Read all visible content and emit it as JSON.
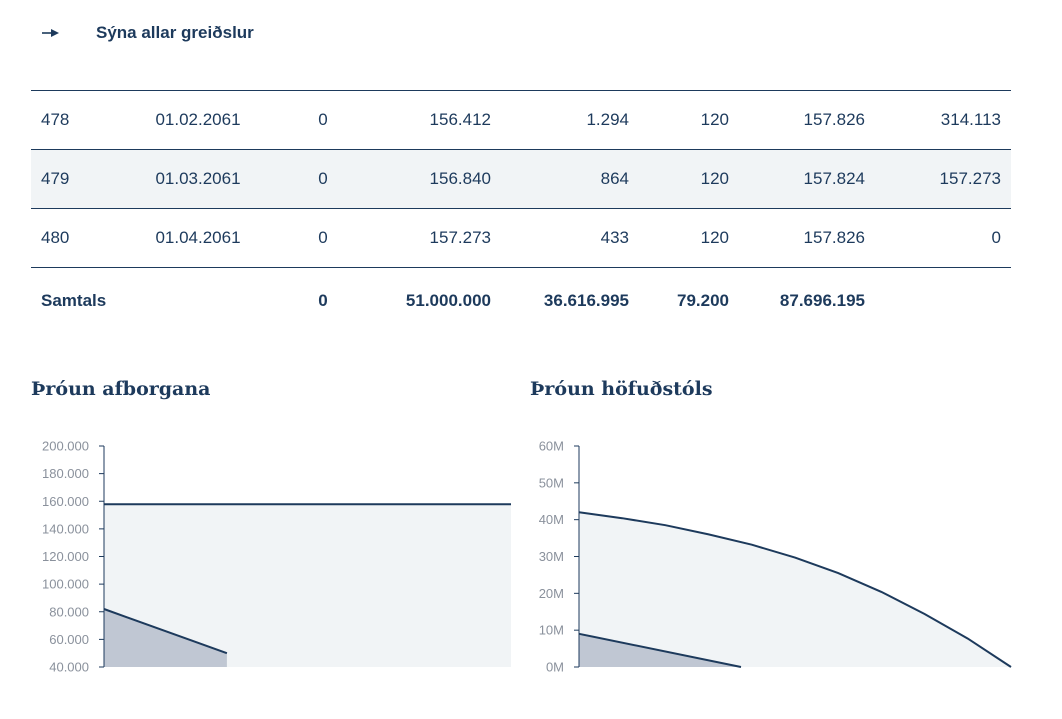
{
  "show_all": {
    "label": "Sýna allar greiðslur",
    "icon": "arrow-right-icon"
  },
  "table": {
    "rows": [
      {
        "nr": "478",
        "date": "01.02.2061",
        "c3": "0",
        "c4": "156.412",
        "c5": "1.294",
        "c6": "120",
        "c7": "157.826",
        "c8": "314.113"
      },
      {
        "nr": "479",
        "date": "01.03.2061",
        "c3": "0",
        "c4": "156.840",
        "c5": "864",
        "c6": "120",
        "c7": "157.824",
        "c8": "157.273"
      },
      {
        "nr": "480",
        "date": "01.04.2061",
        "c3": "0",
        "c4": "157.273",
        "c5": "433",
        "c6": "120",
        "c7": "157.826",
        "c8": "0"
      }
    ],
    "total": {
      "label": "Samtals",
      "c3": "0",
      "c4": "51.000.000",
      "c5": "36.616.995",
      "c6": "79.200",
      "c7": "87.696.195",
      "c8": ""
    }
  },
  "colors": {
    "primary": "#1d3a5c",
    "area_light": "#f1f4f6",
    "area_dark": "#c0c7d3",
    "axis_text": "#8a919c"
  },
  "chart_data": [
    {
      "type": "area",
      "title": "Þróun afborgana",
      "yticks": [
        "200.000",
        "180.000",
        "160.000",
        "140.000",
        "120.000",
        "100.000",
        "80.000",
        "60.000",
        "40.000"
      ],
      "ylim": [
        40000,
        200000
      ],
      "xlim": [
        0,
        480
      ],
      "series": [
        {
          "name": "total_payment",
          "x": [
            0,
            480
          ],
          "values": [
            157826,
            157826
          ]
        },
        {
          "name": "interest",
          "x": [
            0,
            145
          ],
          "values": [
            82000,
            50000
          ]
        }
      ]
    },
    {
      "type": "area",
      "title": "Þróun höfuðstóls",
      "yticks": [
        "60M",
        "50M",
        "40M",
        "30M",
        "20M",
        "10M",
        "0M"
      ],
      "ylim": [
        0,
        60
      ],
      "xlim": [
        0,
        480
      ],
      "series": [
        {
          "name": "principal_balance",
          "x": [
            0,
            48,
            96,
            144,
            192,
            240,
            288,
            336,
            384,
            432,
            480
          ],
          "values": [
            42,
            40.4,
            38.5,
            36,
            33.2,
            29.7,
            25.5,
            20.4,
            14.4,
            7.7,
            0
          ]
        },
        {
          "name": "secondary",
          "x": [
            0,
            180
          ],
          "values": [
            9,
            0
          ]
        }
      ]
    }
  ]
}
